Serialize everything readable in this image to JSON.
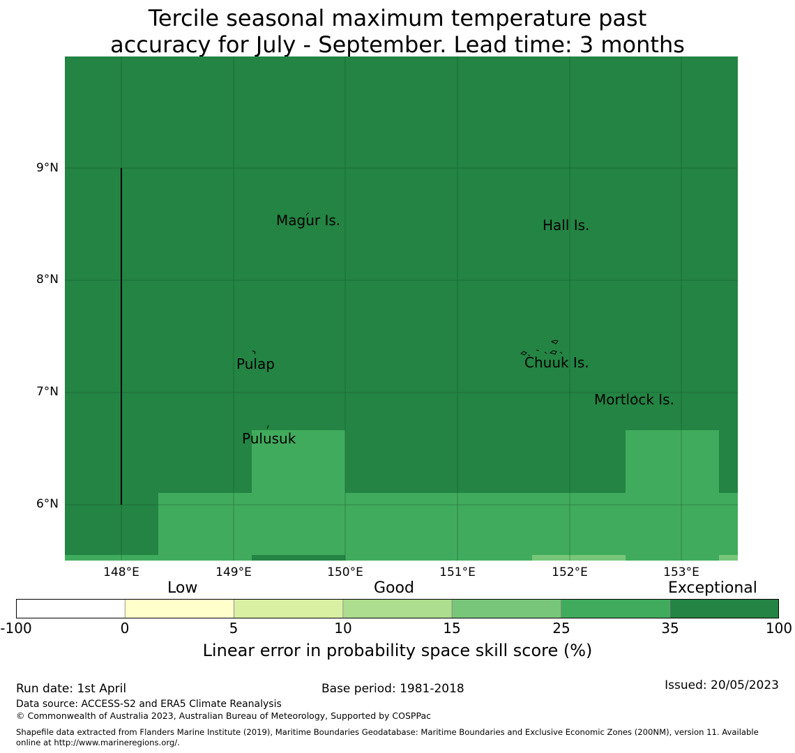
{
  "title": {
    "line1": "Tercile seasonal maximum temperature past",
    "line2": "accuracy for July - September. Lead time: 3 months"
  },
  "map": {
    "lat_labels": [
      "9°N",
      "8°N",
      "7°N",
      "6°N"
    ],
    "lon_labels": [
      "148°E",
      "149°E",
      "150°E",
      "151°E",
      "152°E",
      "153°E"
    ],
    "places": [
      {
        "name": "Magur Is."
      },
      {
        "name": "Hall Is."
      },
      {
        "name": "Pulap"
      },
      {
        "name": "Chuuk Is."
      },
      {
        "name": "Mortlock Is."
      },
      {
        "name": "Pulusuk"
      }
    ],
    "colors": {
      "exceptional": "#238443",
      "good_high": "#41ab5d",
      "good_mid": "#78c679"
    }
  },
  "colorbar": {
    "category_labels": {
      "low": "Low",
      "good": "Good",
      "exceptional": "Exceptional"
    },
    "tick_labels": [
      "-100",
      "0",
      "5",
      "10",
      "15",
      "25",
      "35",
      "100"
    ],
    "colors": [
      "#ffffff",
      "#ffffcc",
      "#d9f0a3",
      "#addd8e",
      "#78c679",
      "#41ab5d",
      "#238443"
    ],
    "title": "Linear error in probability space skill score (%)"
  },
  "footer": {
    "run_date": "Run date: 1st April",
    "base_period": "Base period: 1981-2018",
    "issued": "Issued: 20/05/2023",
    "data_source": "Data source: ACCESS-S2 and ERA5 Climate Reanalysis",
    "copyright": "© Commonwealth of Australia 2023, Australian Bureau of Meteorology, Supported by COSPPac",
    "shapefile_line1": "Shapefile data extracted from Flanders Marine Institute (2019), Maritime Boundaries Geodatabase: Maritime Boundaries and Exclusive Economic Zones (200NM), version 11. Available",
    "shapefile_line2": "online at http://www.marineregions.org/."
  }
}
